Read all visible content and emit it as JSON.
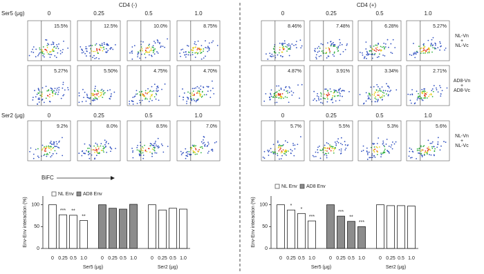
{
  "flow": {
    "title_left": "CD4 (-)",
    "title_right": "CD4 (+)",
    "ser5_label": "Ser5 (μg)",
    "ser2_label": "Ser2 (μg)",
    "doses": [
      "0",
      "0.25",
      "0.5",
      "1.0"
    ],
    "left": [
      [
        "15.5%",
        "12.5%",
        "10.0%",
        "8.75%"
      ],
      [
        "5.27%",
        "5.50%",
        "4.75%",
        "4.70%"
      ],
      [
        "9.2%",
        "8.0%",
        "8.5%",
        "7.0%"
      ]
    ],
    "right": [
      [
        "8.46%",
        "7.48%",
        "6.28%",
        "5.27%"
      ],
      [
        "4.87%",
        "3.91%",
        "3.34%",
        "2.71%"
      ],
      [
        "5.7%",
        "5.5%",
        "5.3%",
        "5.6%"
      ]
    ],
    "row_labels": [
      [
        "NL-Vn",
        "+",
        "NL-Vc"
      ],
      [
        "AD8-Vn",
        "+",
        "AD8-Vc"
      ],
      [
        "NL-Vn",
        "+",
        "NL-Vc"
      ]
    ],
    "axis_label": "BiFC"
  },
  "chart_data": [
    {
      "type": "bar",
      "ylabel": "Env-Env interaction (%)",
      "categories": [
        "0",
        "0.25",
        "0.5",
        "1.0",
        "0",
        "0.25",
        "0.5",
        "1.0",
        "0",
        "0.25",
        "0.5",
        "1.0"
      ],
      "group_labels": [
        "Ser5 (μg)",
        "Ser2 (μg)"
      ],
      "series": [
        {
          "name": "NL Env",
          "color": "#ffffff",
          "values": [
            100,
            77,
            76,
            64,
            null,
            null,
            null,
            null,
            100,
            88,
            92,
            90
          ],
          "value_labels": [
            null,
            "***",
            "**",
            "**",
            null,
            null,
            null,
            null,
            null,
            null,
            null,
            null
          ]
        },
        {
          "name": "AD8 Env",
          "color": "#8c8c8c",
          "values": [
            null,
            null,
            null,
            null,
            100,
            92,
            90,
            101,
            null,
            null,
            null,
            null
          ],
          "value_labels": [
            null,
            null,
            null,
            null,
            null,
            null,
            null,
            null,
            null,
            null,
            null,
            null
          ]
        }
      ],
      "ylim": [
        0,
        120
      ],
      "yticks": [
        0,
        50,
        100
      ]
    },
    {
      "type": "bar",
      "ylabel": "Env-Env interaction (%)",
      "categories": [
        "0",
        "0.25",
        "0.5",
        "1.0",
        "0",
        "0.25",
        "0.5",
        "1.0",
        "0",
        "0.25",
        "0.5",
        "1.0"
      ],
      "group_labels": [
        "Ser5 (μg)",
        "Ser2 (μg)"
      ],
      "series": [
        {
          "name": "NL Env",
          "color": "#ffffff",
          "values": [
            100,
            88,
            80,
            63,
            null,
            null,
            null,
            null,
            100,
            98,
            98,
            97
          ],
          "value_labels": [
            null,
            "*",
            "*",
            "***",
            null,
            null,
            null,
            null,
            null,
            null,
            null,
            null
          ]
        },
        {
          "name": "AD8 Env",
          "color": "#8c8c8c",
          "values": [
            null,
            null,
            null,
            null,
            100,
            74,
            62,
            50,
            null,
            null,
            null,
            null
          ],
          "value_labels": [
            null,
            null,
            null,
            null,
            null,
            "***",
            "**",
            "***",
            null,
            null,
            null,
            null
          ]
        }
      ],
      "ylim": [
        0,
        120
      ],
      "yticks": [
        0,
        50,
        100
      ]
    }
  ]
}
